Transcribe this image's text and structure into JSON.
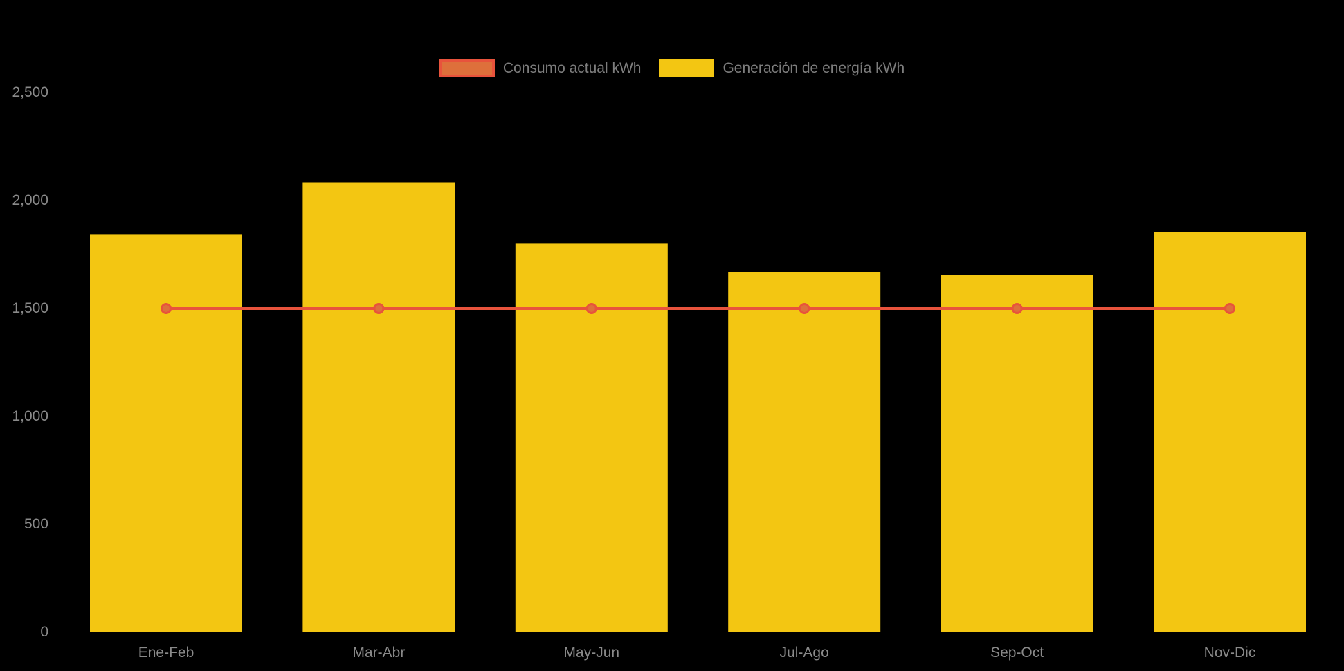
{
  "page": {
    "background": "#000000"
  },
  "chart_data": {
    "type": "bar",
    "categories": [
      "Ene-Feb",
      "Mar-Abr",
      "May-Jun",
      "Jul-Ago",
      "Sep-Oct",
      "Nov-Dic"
    ],
    "series": [
      {
        "name": "Consumo actual kWh",
        "type": "line",
        "values": [
          1500,
          1500,
          1500,
          1500,
          1500,
          1500
        ],
        "color": "#E8533C",
        "marker_fill": "#DE703B",
        "legend_fill": "#DE703B"
      },
      {
        "name": "Generación de energía kWh",
        "type": "bar",
        "values": [
          1845,
          2085,
          1800,
          1670,
          1655,
          1855
        ],
        "color": "#F3C612",
        "legend_fill": "#F3C612"
      }
    ],
    "yticks": [
      {
        "value": 0,
        "label": "0"
      },
      {
        "value": 500,
        "label": "500"
      },
      {
        "value": 1000,
        "label": "1,000"
      },
      {
        "value": 1500,
        "label": "1,500"
      },
      {
        "value": 2000,
        "label": "2,000"
      },
      {
        "value": 2500,
        "label": "2,500"
      }
    ],
    "ylim": [
      0,
      2500
    ],
    "xlabel": "",
    "ylabel": "",
    "title": "",
    "grid": false,
    "legend_position": "top-center",
    "axis_label_color": "#8a8a8a",
    "background": "#000000"
  }
}
